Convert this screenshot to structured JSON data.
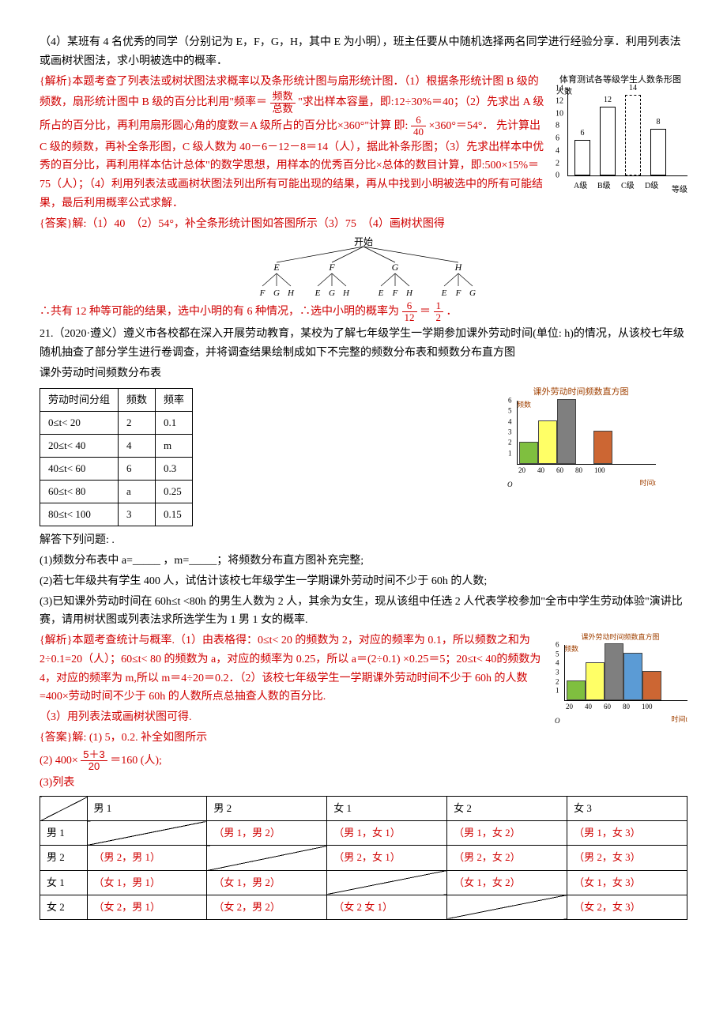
{
  "q20": {
    "item4": "（4）某班有 4 名优秀的同学（分别记为 E，F，G，H，其中 E 为小明），班主任要从中随机选择两名同学进行经验分享．利用列表法或画树状图法，求小明被选中的概率．",
    "analysis_pre": "{解析}本题考查了列表法或树状图法求概率以及条形统计图与扇形统计图．（1）根据条形统计图 B 级的频数，扇形统计图中 B 级的百分比利用\"频率＝",
    "analysis_frac_num": "频数",
    "analysis_frac_den": "总数",
    "analysis_post1": "\"求出样本容量，即:12÷30%＝40；（2）先求出 A 级所占的百分比，再利用扇形圆心角的度数＝A 级所占的百分比×360°\"计算  即:",
    "frac6": "6",
    "frac40": "40",
    "analysis_post2": "×360°＝54°． 先计算出 C 级的频数，再补全条形图，C 级人数为 40－6－12－8＝14（人），据此补条形图；（3）先求出样本中优秀的百分比，再利用样本估计总体\"的数学思想，用样本的优秀百分比×总体的数目计算，即:500×15%＝75（人）；（4）利用列表法或画树状图法列出所有可能出现的结果，再从中找到小明被选中的所有可能结果，最后利用概率公式求解．",
    "answer_line": "{答案}解:（1）40　（2）54°，补全条形统计图如答图所示（3）75　（4）画树状图得",
    "tree_root": "开始",
    "tree_nodes": [
      "E",
      "F",
      "G",
      "H"
    ],
    "tree_leaves": [
      [
        "F",
        "G",
        "H"
      ],
      [
        "E",
        "G",
        "H"
      ],
      [
        "E",
        "F",
        "H"
      ],
      [
        "E",
        "F",
        "G"
      ]
    ],
    "conclusion_pre": "∴共有 12 种等可能的结果，选中小明的有 6 种情况，∴选中小明的概率为",
    "prob_num": "6",
    "prob_den": "12",
    "prob_eq": "＝",
    "prob_num2": "1",
    "prob_den2": "2",
    "conclusion_post": "．",
    "bar_chart": {
      "title": "体育测试各等级学生人数条形图",
      "ylabel": "人数",
      "categories": [
        "A级",
        "B级",
        "C级",
        "D级"
      ],
      "xlabel": "等级",
      "values": [
        6,
        12,
        14,
        8
      ],
      "value_labels": [
        "6",
        "12",
        "14",
        "8"
      ],
      "ymax": 14,
      "yticks": [
        0,
        2,
        4,
        6,
        8,
        10,
        12,
        14
      ],
      "bar_fill": "#ffffff",
      "bar_border": "#000000",
      "c_dashed": true
    }
  },
  "q21": {
    "stem": "21.（2020·遵义）遵义市各校都在深入开展劳动教育，某校为了解七年级学生一学期参加课外劳动时间(单位: h)的情况，从该校七年级随机抽查了部分学生进行卷调查，并将调查结果绘制成如下不完整的频数分布表和频数分布直方图",
    "table_title": "课外劳动时间频数分布表",
    "headers": [
      "劳动时间分组",
      "频数",
      "频率"
    ],
    "rows": [
      [
        "0≤t< 20",
        "2",
        "0.1"
      ],
      [
        "20≤t< 40",
        "4",
        "m"
      ],
      [
        "40≤t< 60",
        "6",
        "0.3"
      ],
      [
        "60≤t< 80",
        "a",
        "0.25"
      ],
      [
        "80≤t< 100",
        "3",
        "0.15"
      ]
    ],
    "after": "解答下列问题:  .",
    "q1": "(1)频数分布表中 a=_____ ，m=_____；将频数分布直方图补充完整;",
    "q2": "(2)若七年级共有学生 400 人，试估计该校七年级学生一学期课外劳动时间不少于 60h 的人数;",
    "q3": "(3)已知课外劳动时间在 60h≤t <80h 的男生人数为 2 人，其余为女生，现从该组中任选 2 人代表学校参加\"全市中学生劳动体验\"演讲比赛，请用树状图或列表法求所选学生为 1 男 1 女的概率.",
    "ana1": "{解析}本题考查统计与概率.（1）由表格得：0≤t< 20 的频数为 2，对应的频率为 0.1，所以频数之和为 2÷0.1=20（人）；60≤t< 80 的频数为 a，对应的频率为 0.25，所以 a＝(2÷0.1)  ×0.25＝5；20≤t< 40的频数为 4，对应的频率为 m,所以 m＝4÷20＝0.2．（2）该校七年级学生一学期课外劳动时间不少于 60h 的人数=400×劳动时间不少于 60h 的人数所点总抽查人数的百分比.",
    "ana2": "（3）用列表法或画树状图可得.",
    "ans1": "{答案}解: (1) 5，0.2.  补全如图所示",
    "ans2_pre": "(2) 400×",
    "ans2_num": "5＋3",
    "ans2_den": "20",
    "ans2_post": "＝160 (人);",
    "ans3": "(3)列表",
    "hist": {
      "title": "课外劳动时间频数直方图",
      "ylabel": "频数",
      "xlabel": "时间t",
      "xticks": [
        "20",
        "40",
        "60",
        "80",
        "100"
      ],
      "yticks": [
        1,
        2,
        3,
        4,
        5,
        6
      ],
      "values": [
        2,
        4,
        6,
        0,
        3
      ],
      "colors": [
        "#7fbf3f",
        "#ffff66",
        "#7f7f7f",
        "#ffffff",
        "#cc6633"
      ],
      "ymax": 6
    },
    "hist2": {
      "title": "课外劳动时间频数直方图",
      "ylabel": "频数",
      "xlabel": "时间t",
      "xticks": [
        "20",
        "40",
        "60",
        "80",
        "100"
      ],
      "yticks": [
        1,
        2,
        3,
        4,
        5,
        6
      ],
      "values": [
        2,
        4,
        6,
        5,
        3
      ],
      "colors": [
        "#7fbf3f",
        "#ffff66",
        "#7f7f7f",
        "#5b9bd5",
        "#cc6633"
      ],
      "ymax": 6
    },
    "grid_headers": [
      "",
      "男 1",
      "男 2",
      "女 1",
      "女 2",
      "女 3"
    ],
    "grid_rows": [
      [
        "男 1",
        "",
        "（男 1，男 2）",
        "（男 1，女 1）",
        "（男 1，女 2）",
        "（男 1，女 3）"
      ],
      [
        "男 2",
        "（男 2，男 1）",
        "",
        "（男 2，女 1）",
        "（男 2，女 2）",
        "（男 2，女 3）"
      ],
      [
        "女 1",
        "（女 1，男 1）",
        "（女 1，男 2）",
        "",
        "（女 1，女 2）",
        "（女 1，女 3）"
      ],
      [
        "女 2",
        "（女 2，男 1）",
        "（女 2，男 2）",
        "（女 2 女 1）",
        "",
        "（女 2，女 3）"
      ]
    ]
  }
}
